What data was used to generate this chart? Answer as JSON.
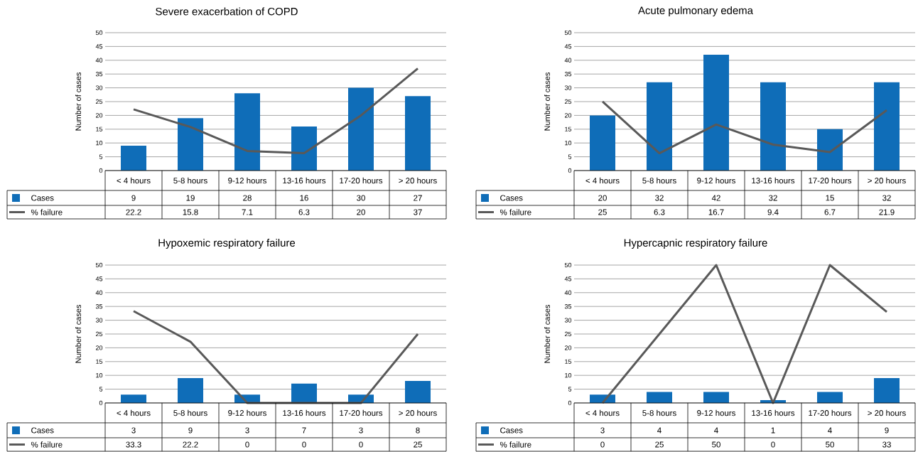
{
  "chart_data": [
    {
      "type": "bar",
      "title": "Severe exacerbation of COPD",
      "ylabel": "Number of cases",
      "categories": [
        "< 4 hours",
        "5-8 hours",
        "9-12 hours",
        "13-16 hours",
        "17-20 hours",
        "> 20 hours"
      ],
      "ylim": [
        0,
        50
      ],
      "yticks": [
        0,
        5,
        10,
        15,
        20,
        25,
        30,
        35,
        40,
        45,
        50
      ],
      "grid": "y",
      "legend": "bottom left",
      "marker": "none",
      "series": [
        {
          "name": "Cases",
          "color": "#0f6db8",
          "values": [
            9,
            19,
            28,
            16,
            30,
            27
          ],
          "value_labels": [
            "9",
            "19",
            "28",
            "16",
            "30",
            "27"
          ]
        },
        {
          "name": "% failure",
          "type": "line",
          "color": "#595959",
          "values": [
            22.2,
            15.8,
            7.1,
            6.3,
            20,
            37
          ],
          "value_labels": [
            "22.2",
            "15.8",
            "7.1",
            "6.3",
            "20",
            "37"
          ]
        }
      ]
    },
    {
      "type": "bar",
      "title": "Acute pulmonary edema",
      "ylabel": "Number of cases",
      "categories": [
        "< 4 hours",
        "5-8 hours",
        "9-12 hours",
        "13-16 hours",
        "17-20 hours",
        "> 20 hours"
      ],
      "ylim": [
        0,
        50
      ],
      "yticks": [
        0,
        5,
        10,
        15,
        20,
        25,
        30,
        35,
        40,
        45,
        50
      ],
      "grid": "y",
      "legend": "bottom left",
      "marker": "none",
      "series": [
        {
          "name": "Cases",
          "color": "#0f6db8",
          "values": [
            20,
            32,
            42,
            32,
            15,
            32
          ],
          "value_labels": [
            "20",
            "32",
            "42",
            "32",
            "15",
            "32"
          ]
        },
        {
          "name": "% failure",
          "type": "line",
          "color": "#595959",
          "values": [
            25,
            6.3,
            16.7,
            9.4,
            6.7,
            21.9
          ],
          "value_labels": [
            "25",
            "6.3",
            "16.7",
            "9.4",
            "6.7",
            "21.9"
          ]
        }
      ]
    },
    {
      "type": "bar",
      "title": "Hypoxemic respiratory failure",
      "ylabel": "Number of cases",
      "categories": [
        "< 4 hours",
        "5-8 hours",
        "9-12 hours",
        "13-16 hours",
        "17-20 hours",
        "> 20 hours"
      ],
      "ylim": [
        0,
        50
      ],
      "yticks": [
        0,
        5,
        10,
        15,
        20,
        25,
        30,
        35,
        40,
        45,
        50
      ],
      "grid": "y",
      "legend": "bottom left",
      "marker": "none",
      "series": [
        {
          "name": "Cases",
          "color": "#0f6db8",
          "values": [
            3,
            9,
            3,
            7,
            3,
            8
          ],
          "value_labels": [
            "3",
            "9",
            "3",
            "7",
            "3",
            "8"
          ]
        },
        {
          "name": "% failure",
          "type": "line",
          "color": "#595959",
          "values": [
            33.3,
            22.2,
            0,
            0,
            0,
            25
          ],
          "value_labels": [
            "33.3",
            "22.2",
            "0",
            "0",
            "0",
            "25"
          ]
        }
      ]
    },
    {
      "type": "bar",
      "title": "Hypercapnic respiratory failure",
      "ylabel": "Number of cases",
      "categories": [
        "< 4 hours",
        "5-8 hours",
        "9-12 hours",
        "13-16 hours",
        "17-20 hours",
        "> 20 hours"
      ],
      "ylim": [
        0,
        50
      ],
      "yticks": [
        0,
        5,
        10,
        15,
        20,
        25,
        30,
        35,
        40,
        45,
        50
      ],
      "grid": "y",
      "legend": "bottom left",
      "marker": "none",
      "series": [
        {
          "name": "Cases",
          "color": "#0f6db8",
          "values": [
            3,
            4,
            4,
            1,
            4,
            9
          ],
          "value_labels": [
            "3",
            "4",
            "4",
            "1",
            "4",
            "9"
          ]
        },
        {
          "name": "% failure",
          "type": "line",
          "color": "#595959",
          "values": [
            0,
            25,
            50,
            0,
            50,
            33
          ],
          "value_labels": [
            "0",
            "25",
            "50",
            "0",
            "50",
            "33"
          ]
        }
      ]
    }
  ]
}
